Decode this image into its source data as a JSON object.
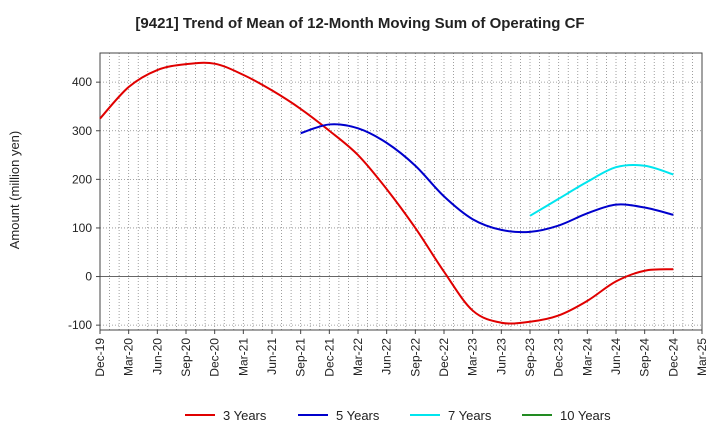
{
  "chart_data": {
    "type": "line",
    "title": "[9421]  Trend of Mean of 12-Month Moving Sum of Operating CF",
    "xlabel": "",
    "ylabel": "Amount (million yen)",
    "ylim": [
      -110,
      460
    ],
    "yticks": [
      -100,
      0,
      100,
      200,
      300,
      400
    ],
    "ytick_labels": [
      "-100",
      "0",
      "100",
      "200",
      "300",
      "400"
    ],
    "grid": true,
    "legend_position": "bottom",
    "categories": [
      "Dec-19",
      "Mar-20",
      "Jun-20",
      "Sep-20",
      "Dec-20",
      "Mar-21",
      "Jun-21",
      "Sep-21",
      "Dec-21",
      "Mar-22",
      "Jun-22",
      "Sep-22",
      "Dec-22",
      "Mar-23",
      "Jun-23",
      "Sep-23",
      "Dec-23",
      "Mar-24",
      "Jun-24",
      "Sep-24",
      "Dec-24",
      "Mar-25"
    ],
    "series": [
      {
        "name": "3 Years",
        "color": "#e00000",
        "values": [
          325,
          390,
          425,
          437,
          438,
          415,
          383,
          345,
          300,
          250,
          180,
          100,
          10,
          -70,
          -95,
          -93,
          -80,
          -50,
          -10,
          12,
          15,
          null
        ]
      },
      {
        "name": "5 Years",
        "color": "#0000cc",
        "values": [
          null,
          null,
          null,
          null,
          null,
          null,
          null,
          295,
          313,
          305,
          275,
          228,
          165,
          118,
          96,
          92,
          105,
          130,
          148,
          142,
          127,
          null
        ]
      },
      {
        "name": "7 Years",
        "color": "#00e5ee",
        "values": [
          null,
          null,
          null,
          null,
          null,
          null,
          null,
          null,
          null,
          null,
          null,
          null,
          null,
          null,
          null,
          125,
          160,
          195,
          225,
          228,
          210,
          null
        ]
      },
      {
        "name": "10 Years",
        "color": "#228b22",
        "values": [
          null,
          null,
          null,
          null,
          null,
          null,
          null,
          null,
          null,
          null,
          null,
          null,
          null,
          null,
          null,
          null,
          null,
          null,
          null,
          null,
          null,
          null
        ]
      }
    ]
  }
}
